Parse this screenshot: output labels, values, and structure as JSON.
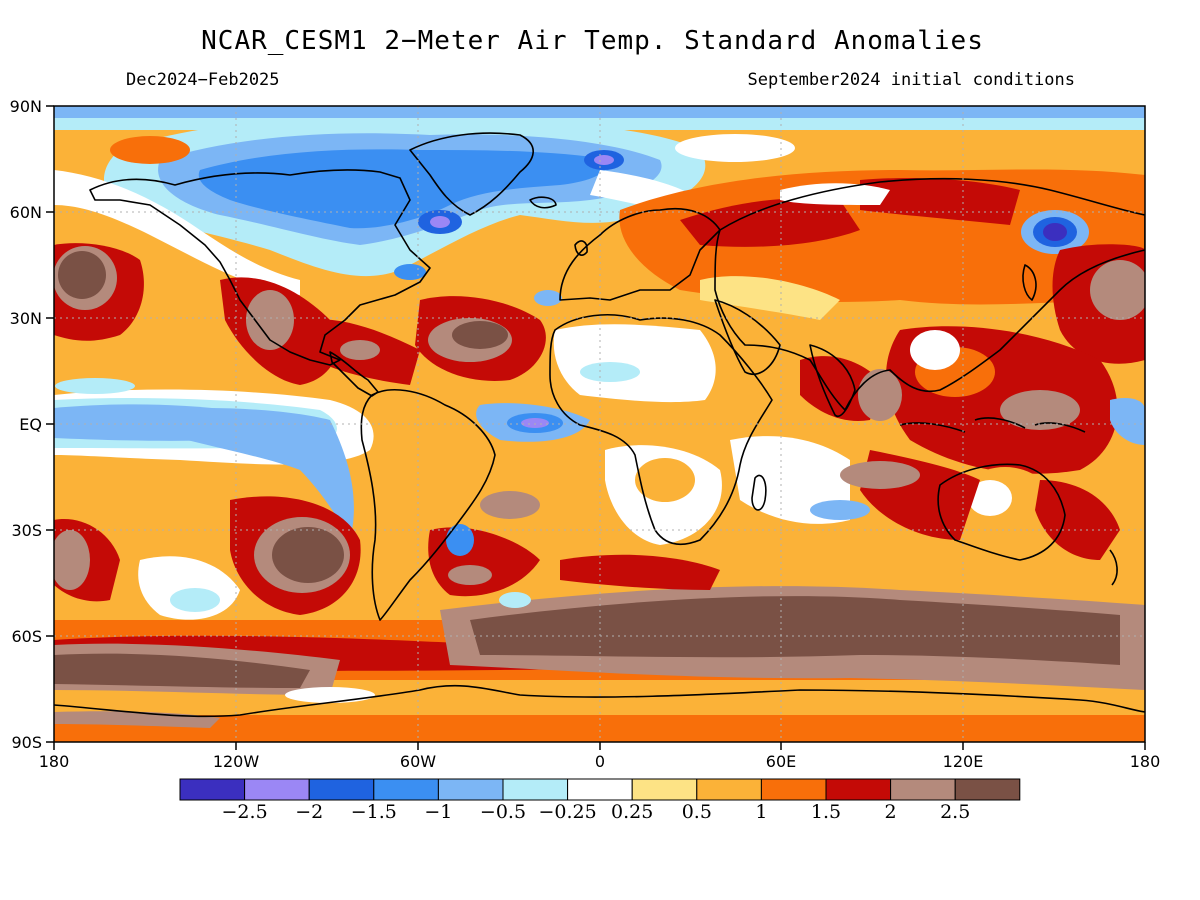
{
  "title": "NCAR_CESM1 2−Meter Air Temp. Standard Anomalies",
  "subtitle_left": "Dec2024−Feb2025",
  "subtitle_right": "September2024 initial conditions",
  "map": {
    "lon_ticks": [
      "180",
      "120W",
      "60W",
      "0",
      "60E",
      "120E",
      "180"
    ],
    "lat_ticks": [
      "90N",
      "60N",
      "30N",
      "EQ",
      "30S",
      "60S",
      "90S"
    ],
    "grid": true,
    "projection": "equirectangular"
  },
  "colorbar": {
    "colors": [
      "#3b2fbf",
      "#9b87f5",
      "#1f63e0",
      "#3b8ff2",
      "#7cb6f5",
      "#b4ecf8",
      "#ffffff",
      "#fde385",
      "#fbb238",
      "#f86f0a",
      "#c40a06",
      "#b48a7c",
      "#7a5145"
    ],
    "labels": [
      "−2.5",
      "−2",
      "−1.5",
      "−1",
      "−0.5",
      "−0.25",
      "0.25",
      "0.5",
      "1",
      "1.5",
      "2",
      "2.5"
    ]
  }
}
